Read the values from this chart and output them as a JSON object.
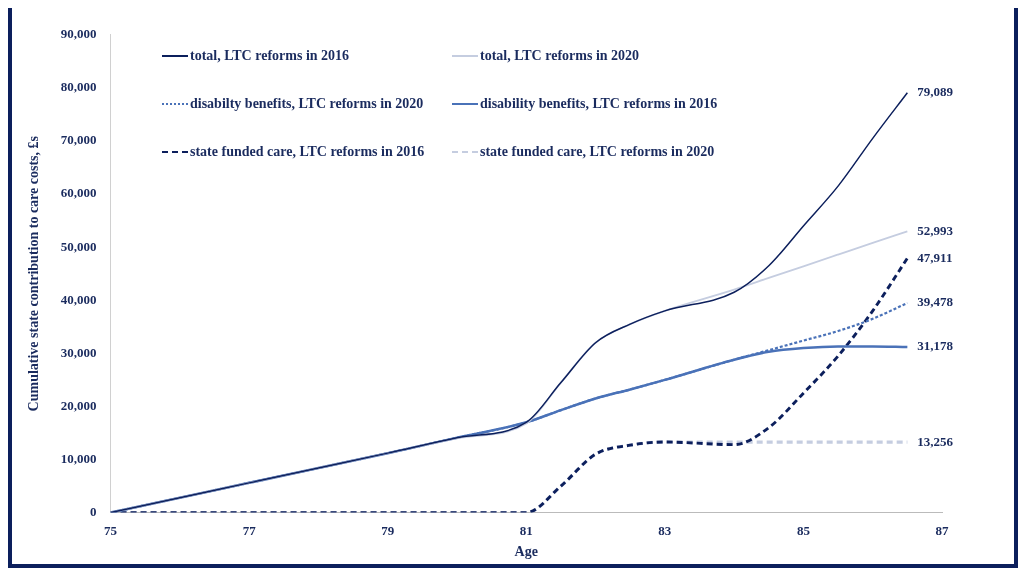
{
  "chart_data": {
    "type": "line",
    "xlabel": "Age",
    "ylabel": "Cumulative state contribution to care costs, £s",
    "x": [
      75,
      76,
      77,
      78,
      79,
      80,
      81,
      81.5,
      82,
      82.5,
      83,
      84,
      84.5,
      85,
      85.5,
      86,
      86.5
    ],
    "xlim": [
      75,
      87
    ],
    "xticks": [
      75,
      77,
      79,
      81,
      83,
      85,
      87
    ],
    "ylim": [
      0,
      90000
    ],
    "yticks": [
      0,
      {
        "value": 10000,
        "label": "10,000"
      },
      {
        "value": 20000,
        "label": "20,000"
      },
      {
        "value": 30000,
        "label": "30,000"
      },
      {
        "value": 40000,
        "label": "40,000"
      },
      {
        "value": 50000,
        "label": "50,000"
      },
      {
        "value": 60000,
        "label": "60,000"
      },
      {
        "value": 70000,
        "label": "70,000"
      },
      {
        "value": 80000,
        "label": "80,000"
      },
      {
        "value": 90000,
        "label": "90,000"
      }
    ],
    "grid": false,
    "legend": "top left",
    "marker": "none",
    "series": [
      {
        "name": "total, LTC reforms in 2016",
        "color": "#0c1f5c",
        "line_style": "solid",
        "values": [
          0,
          2800,
          5600,
          8400,
          11200,
          14100,
          17000,
          24500,
          32000,
          35500,
          38000,
          41500,
          46500,
          54000,
          61500,
          70500,
          79089
        ],
        "value_labels": [
          null,
          null,
          null,
          null,
          null,
          null,
          null,
          null,
          null,
          null,
          null,
          null,
          null,
          null,
          null,
          null,
          "79,089"
        ]
      },
      {
        "name": "total, LTC reforms in 2020",
        "color": "#c5cde0",
        "line_style": "solid",
        "values": [
          0,
          2800,
          5600,
          8400,
          11200,
          14000,
          16800,
          24500,
          32000,
          35500,
          38000,
          42000,
          44200,
          46400,
          48600,
          50800,
          52993
        ],
        "value_labels": [
          null,
          null,
          null,
          null,
          null,
          null,
          null,
          null,
          null,
          null,
          null,
          null,
          null,
          null,
          null,
          null,
          "52,993"
        ]
      },
      {
        "name": "disabilty benefits, LTC reforms in 2020",
        "color": "#4a72b8",
        "line_style": "dotted",
        "values": [
          0,
          2800,
          5600,
          8400,
          11200,
          14100,
          17000,
          19300,
          21500,
          23200,
          25000,
          28800,
          30600,
          32400,
          34200,
          36500,
          39478
        ],
        "value_labels": [
          null,
          null,
          null,
          null,
          null,
          null,
          null,
          null,
          null,
          null,
          null,
          null,
          null,
          null,
          null,
          null,
          "39,478"
        ]
      },
      {
        "name": "disability benefits, LTC reforms in 2016",
        "color": "#4a72b8",
        "line_style": "solid",
        "values": [
          0,
          2800,
          5600,
          8400,
          11200,
          14100,
          17000,
          19300,
          21500,
          23200,
          25000,
          28800,
          30300,
          31000,
          31300,
          31300,
          31178
        ],
        "value_labels": [
          null,
          null,
          null,
          null,
          null,
          null,
          null,
          null,
          null,
          null,
          null,
          null,
          null,
          null,
          null,
          null,
          "31,178"
        ]
      },
      {
        "name": "state funded care, LTC reforms in 2016",
        "color": "#0c1f5c",
        "line_style": "dashed",
        "values": [
          0,
          0,
          0,
          0,
          0,
          0,
          0,
          5000,
          11000,
          12700,
          13300,
          12800,
          16000,
          22500,
          29500,
          38000,
          47911
        ],
        "value_labels": [
          null,
          null,
          null,
          null,
          null,
          null,
          null,
          null,
          null,
          null,
          null,
          null,
          null,
          null,
          null,
          null,
          "47,911"
        ]
      },
      {
        "name": "state funded care, LTC reforms in 2020",
        "color": "#c5cde0",
        "line_style": "dashed",
        "values": [
          0,
          0,
          0,
          0,
          0,
          0,
          0,
          5000,
          11000,
          12700,
          13300,
          13256,
          13256,
          13256,
          13256,
          13256,
          13256
        ],
        "value_labels": [
          null,
          null,
          null,
          null,
          null,
          null,
          null,
          null,
          null,
          null,
          null,
          null,
          null,
          null,
          null,
          null,
          "13,256"
        ]
      }
    ]
  }
}
